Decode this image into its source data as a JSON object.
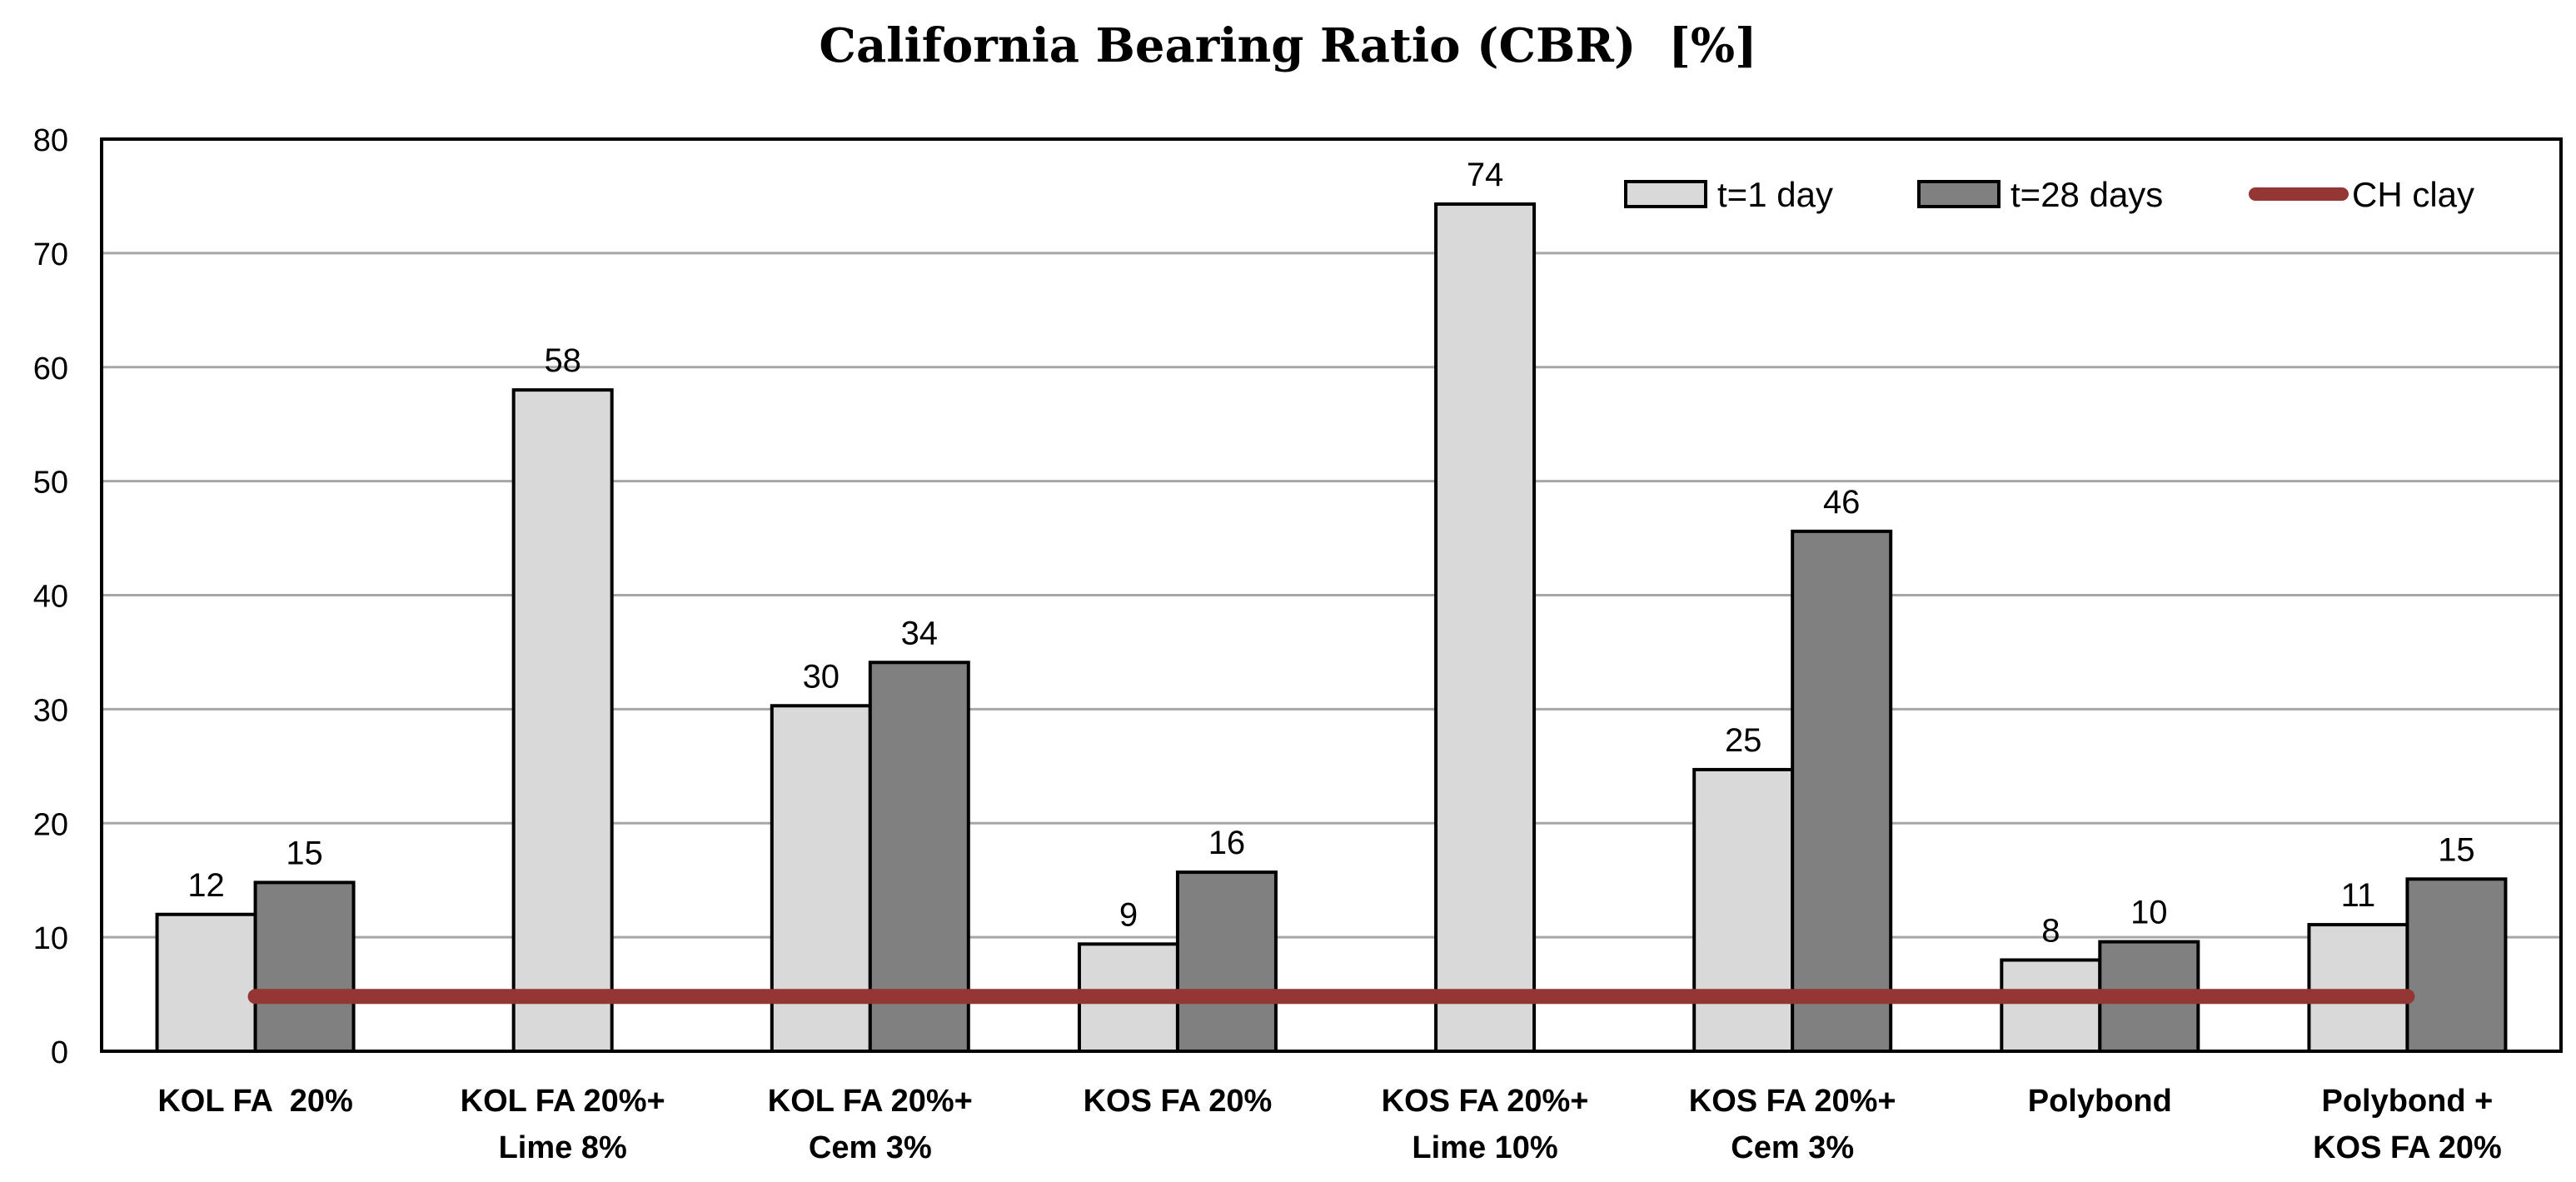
{
  "chart_data": {
    "type": "bar",
    "title": "California Bearing Ratio (CBR)  [%]",
    "xlabel": "",
    "ylabel": "",
    "ylim": [
      0,
      80
    ],
    "yticks": [
      0,
      10,
      20,
      30,
      40,
      50,
      60,
      70,
      80
    ],
    "grid": true,
    "legend_position": "top-right",
    "categories": [
      [
        "KOL FA  20%"
      ],
      [
        "KOL FA 20%+",
        "Lime 8%"
      ],
      [
        "KOL FA 20%+",
        "Cem 3%"
      ],
      [
        "KOS FA 20%"
      ],
      [
        "KOS FA 20%+",
        "Lime 10%"
      ],
      [
        "KOS FA 20%+",
        "Cem 3%"
      ],
      [
        "Polybond"
      ],
      [
        "Polybond +",
        "KOS FA 20%"
      ]
    ],
    "series": [
      {
        "name": "t=1 day",
        "color": "#d9d9d9",
        "values": [
          12,
          58,
          30.3,
          9.4,
          74.3,
          24.7,
          8,
          11.1
        ],
        "labels": [
          "12",
          "58",
          "30",
          "9",
          "74",
          "25",
          "8",
          "11"
        ]
      },
      {
        "name": "t=28 days",
        "color": "#808080",
        "values": [
          14.8,
          null,
          34.1,
          15.7,
          null,
          45.6,
          9.6,
          15.1
        ],
        "labels": [
          "15",
          "",
          "34",
          "16",
          "",
          "46",
          "10",
          "15"
        ]
      }
    ],
    "reference_line": {
      "name": "CH clay",
      "value": 4.8,
      "color": "#943634"
    }
  }
}
